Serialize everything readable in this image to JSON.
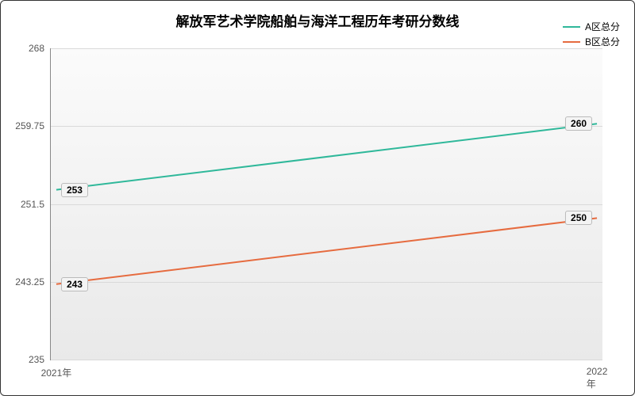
{
  "chart": {
    "type": "line",
    "title": "解放军艺术学院船舶与海洋工程历年考研分数线",
    "title_fontsize": 17,
    "background_gradient_top": "#fbfbfb",
    "background_gradient_bottom": "#e9e9e9",
    "border_color": "#333333",
    "grid_color": "#d9d9d9",
    "axis_color": "#888888",
    "tick_fontcolor": "#555555",
    "tick_fontsize": 12,
    "x": {
      "categories": [
        "2021年",
        "2022年"
      ],
      "positions_pct": [
        1,
        99
      ]
    },
    "y": {
      "min": 235,
      "max": 268,
      "ticks": [
        235,
        243.25,
        251.5,
        259.75,
        268
      ]
    },
    "series": [
      {
        "name": "A区总分",
        "color": "#2fb89a",
        "line_width": 2,
        "values": [
          253,
          260
        ],
        "point_labels": [
          "253",
          "260"
        ]
      },
      {
        "name": "B区总分",
        "color": "#e66b3f",
        "line_width": 2,
        "values": [
          243,
          250
        ],
        "point_labels": [
          "243",
          "250"
        ]
      }
    ],
    "point_label_bg": "#f4f4f4",
    "point_label_border": "#bbbbbb"
  }
}
